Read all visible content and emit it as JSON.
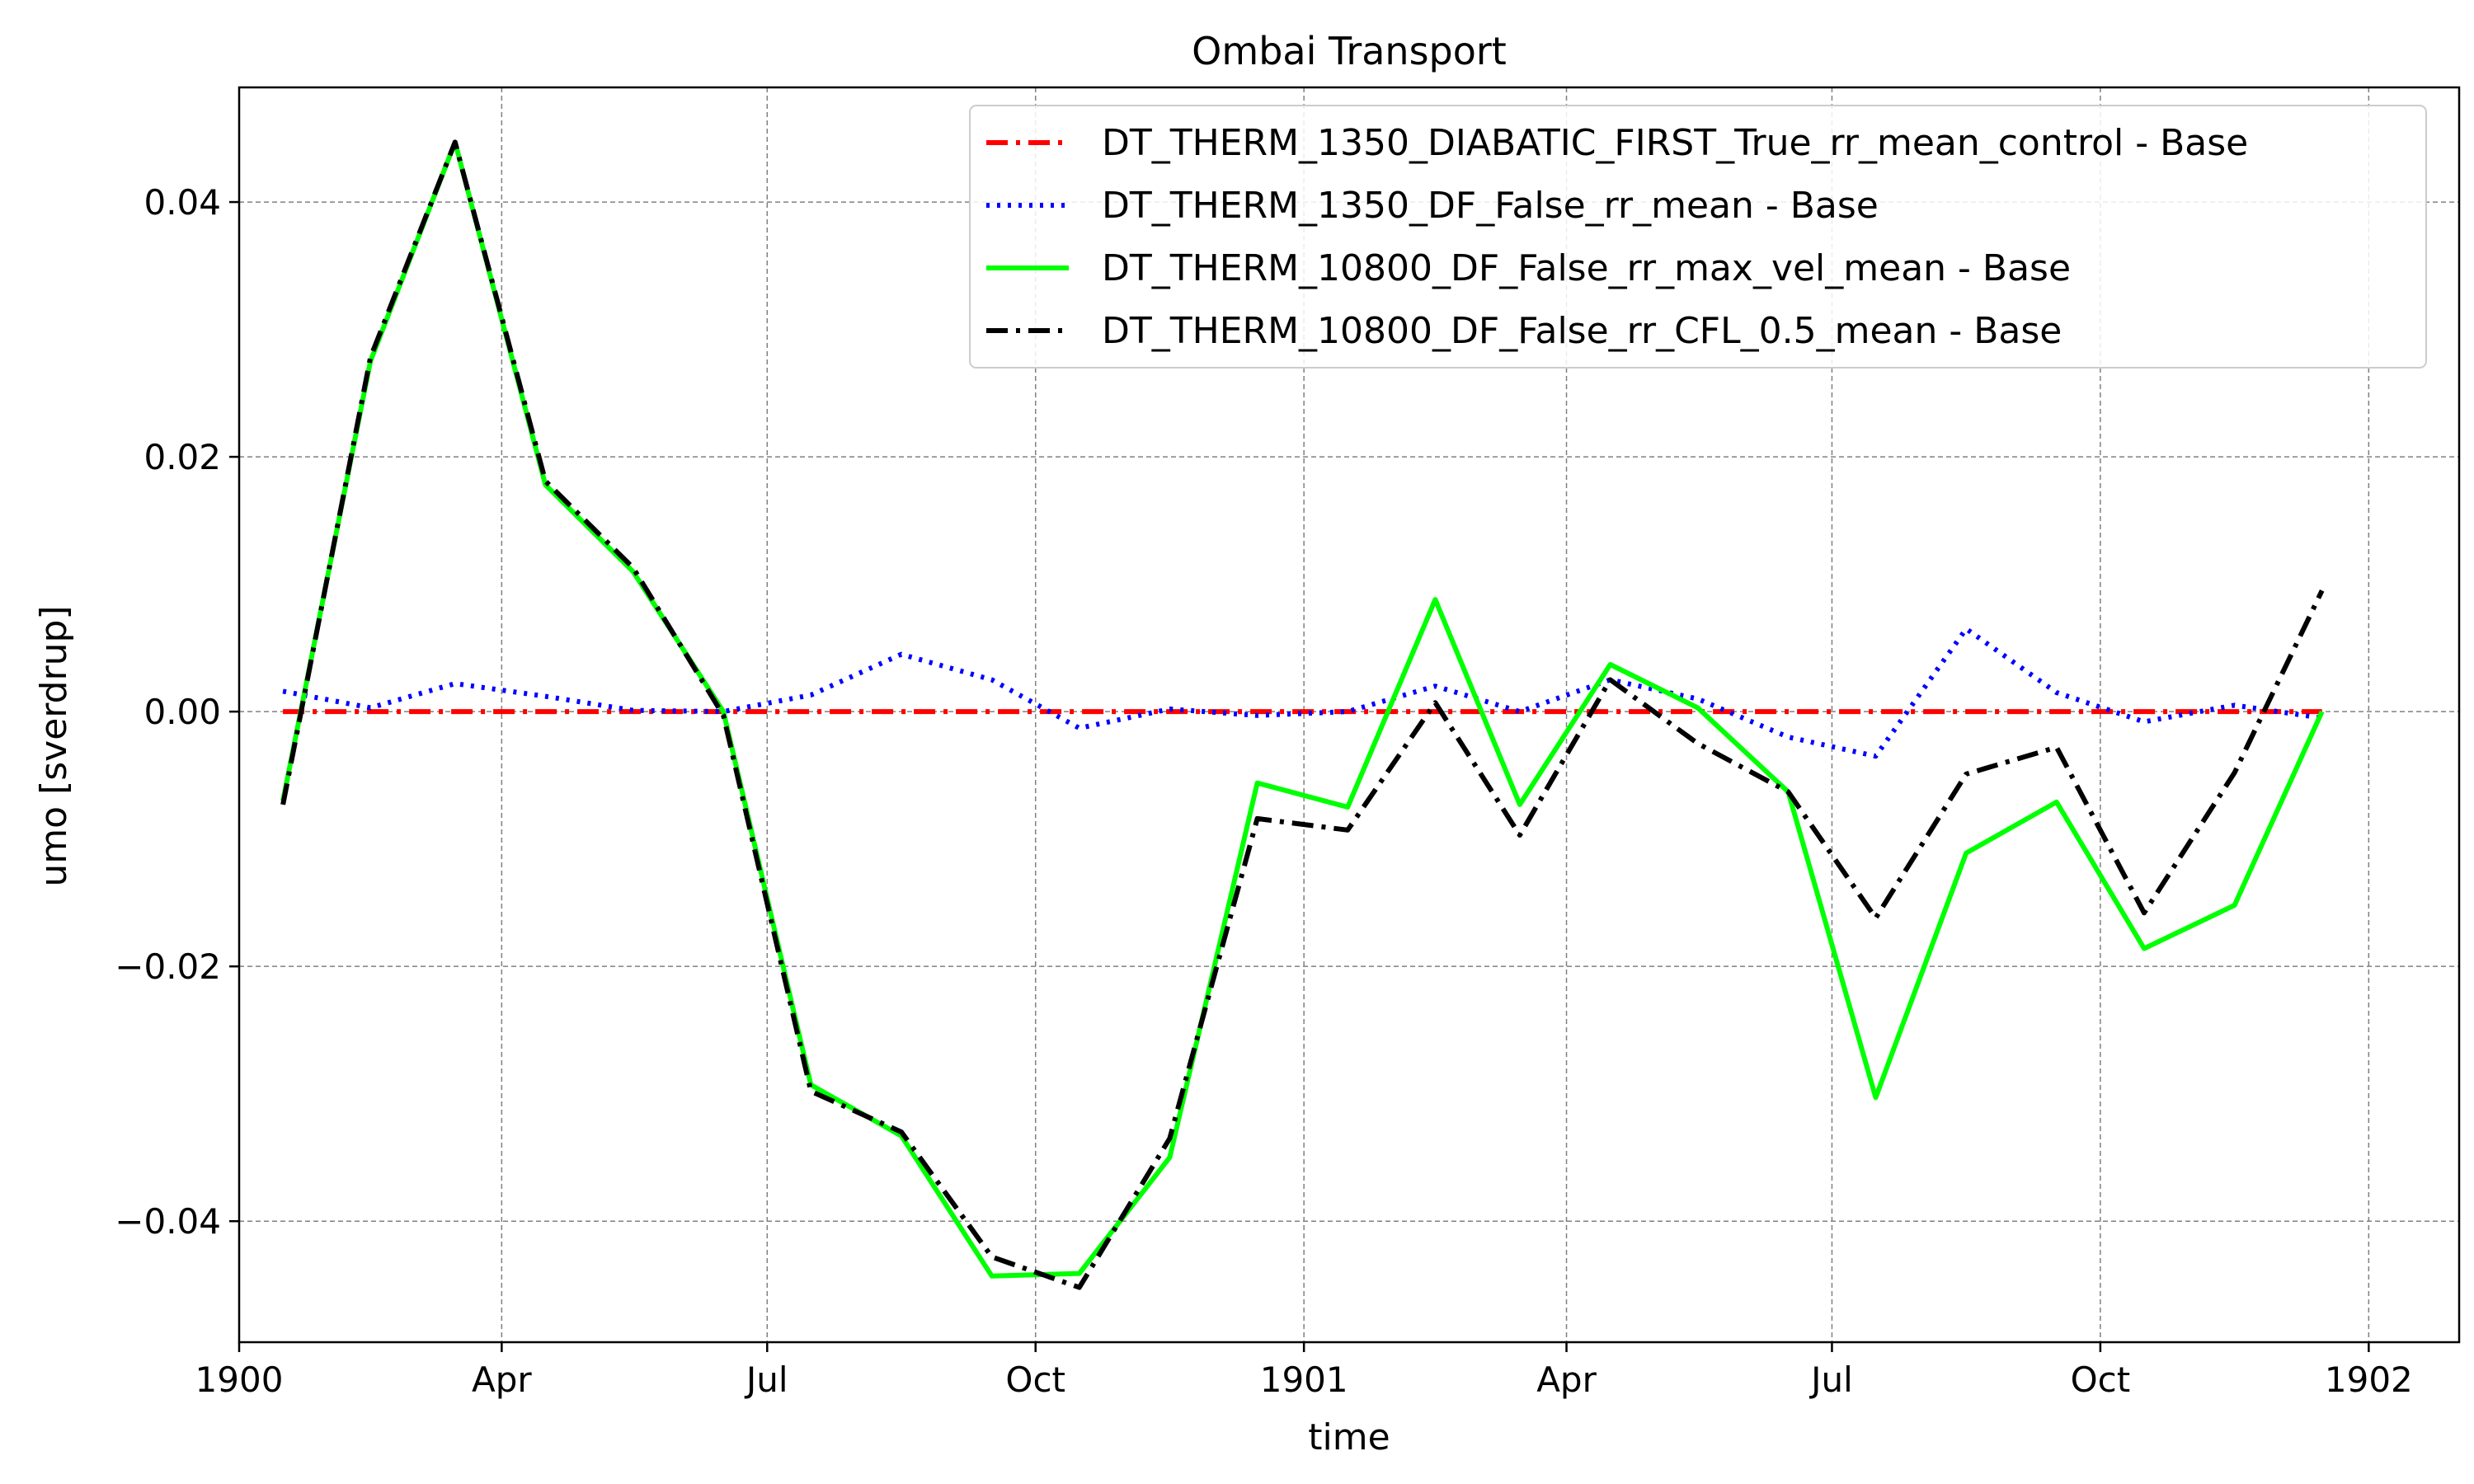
{
  "chart_data": {
    "type": "line",
    "title": "Ombai Transport",
    "xlabel": "time",
    "ylabel": "umo [sverdrup]",
    "x_axis": "date",
    "xlim": [
      "1900-01-01",
      "1902-02-01"
    ],
    "ylim": [
      -0.0495,
      0.049
    ],
    "grid": true,
    "legend_position": "top-right",
    "x_ticks": [
      {
        "date": "1900-01-01",
        "label": "1900"
      },
      {
        "date": "1900-04-01",
        "label": "Apr"
      },
      {
        "date": "1900-07-01",
        "label": "Jul"
      },
      {
        "date": "1900-10-01",
        "label": "Oct"
      },
      {
        "date": "1901-01-01",
        "label": "1901"
      },
      {
        "date": "1901-04-01",
        "label": "Apr"
      },
      {
        "date": "1901-07-01",
        "label": "Jul"
      },
      {
        "date": "1901-10-01",
        "label": "Oct"
      },
      {
        "date": "1902-01-01",
        "label": "1902"
      }
    ],
    "y_ticks": [
      {
        "value": 0.04,
        "label": "0.04"
      },
      {
        "value": 0.02,
        "label": "0.02"
      },
      {
        "value": 0.0,
        "label": "0.00"
      },
      {
        "value": -0.02,
        "label": "−0.02"
      },
      {
        "value": -0.04,
        "label": "−0.04"
      }
    ],
    "x": [
      "1900-01-16",
      "1900-02-15",
      "1900-03-16",
      "1900-04-16",
      "1900-05-16",
      "1900-06-16",
      "1900-07-16",
      "1900-08-16",
      "1900-09-16",
      "1900-10-16",
      "1900-11-16",
      "1900-12-16",
      "1901-01-16",
      "1901-02-15",
      "1901-03-16",
      "1901-04-16",
      "1901-05-16",
      "1901-06-16",
      "1901-07-16",
      "1901-08-16",
      "1901-09-16",
      "1901-10-16",
      "1901-11-16",
      "1901-12-16"
    ],
    "series": [
      {
        "name": "DT_THERM_1350_DIABATIC_FIRST_True_rr_mean_control - Base",
        "color": "#ff0000",
        "style": "dashdot",
        "values": [
          0,
          0,
          0,
          0,
          0,
          0,
          0,
          0,
          0,
          0,
          0,
          0,
          0,
          0,
          0,
          0,
          0,
          0,
          0,
          0,
          0,
          0,
          0,
          0
        ]
      },
      {
        "name": "DT_THERM_1350_DF_False_rr_mean - Base",
        "color": "#0000ff",
        "style": "dotted",
        "values": [
          0.0016,
          0.0003,
          0.0022,
          0.0012,
          0.0001,
          0.0,
          0.0013,
          0.0045,
          0.0025,
          -0.0013,
          0.0002,
          -0.0003,
          0.0,
          0.002,
          0.0,
          0.0025,
          0.001,
          -0.002,
          -0.0035,
          0.0065,
          0.0015,
          -0.0008,
          0.0005,
          -0.0005
        ]
      },
      {
        "name": "DT_THERM_10800_DF_False_rr_max_vel_mean - Base",
        "color": "#00ff00",
        "style": "solid",
        "values": [
          -0.007,
          0.0275,
          0.0447,
          0.0178,
          0.011,
          0.0,
          -0.0293,
          -0.0333,
          -0.0443,
          -0.0441,
          -0.035,
          -0.0056,
          -0.0075,
          0.0088,
          -0.0073,
          0.0037,
          0.0003,
          -0.0063,
          -0.0303,
          -0.0111,
          -0.0071,
          -0.0186,
          -0.0152,
          0.0
        ]
      },
      {
        "name": "DT_THERM_10800_DF_False_rr_CFL_0.5_mean - Base",
        "color": "#000000",
        "style": "dashdot",
        "values": [
          -0.0073,
          0.0278,
          0.0447,
          0.0181,
          0.0113,
          -0.0003,
          -0.0298,
          -0.033,
          -0.0428,
          -0.0452,
          -0.0335,
          -0.0084,
          -0.0093,
          0.0007,
          -0.0097,
          0.0025,
          -0.0025,
          -0.0063,
          -0.0162,
          -0.0049,
          -0.0028,
          -0.0158,
          -0.0048,
          0.0095
        ]
      }
    ]
  }
}
